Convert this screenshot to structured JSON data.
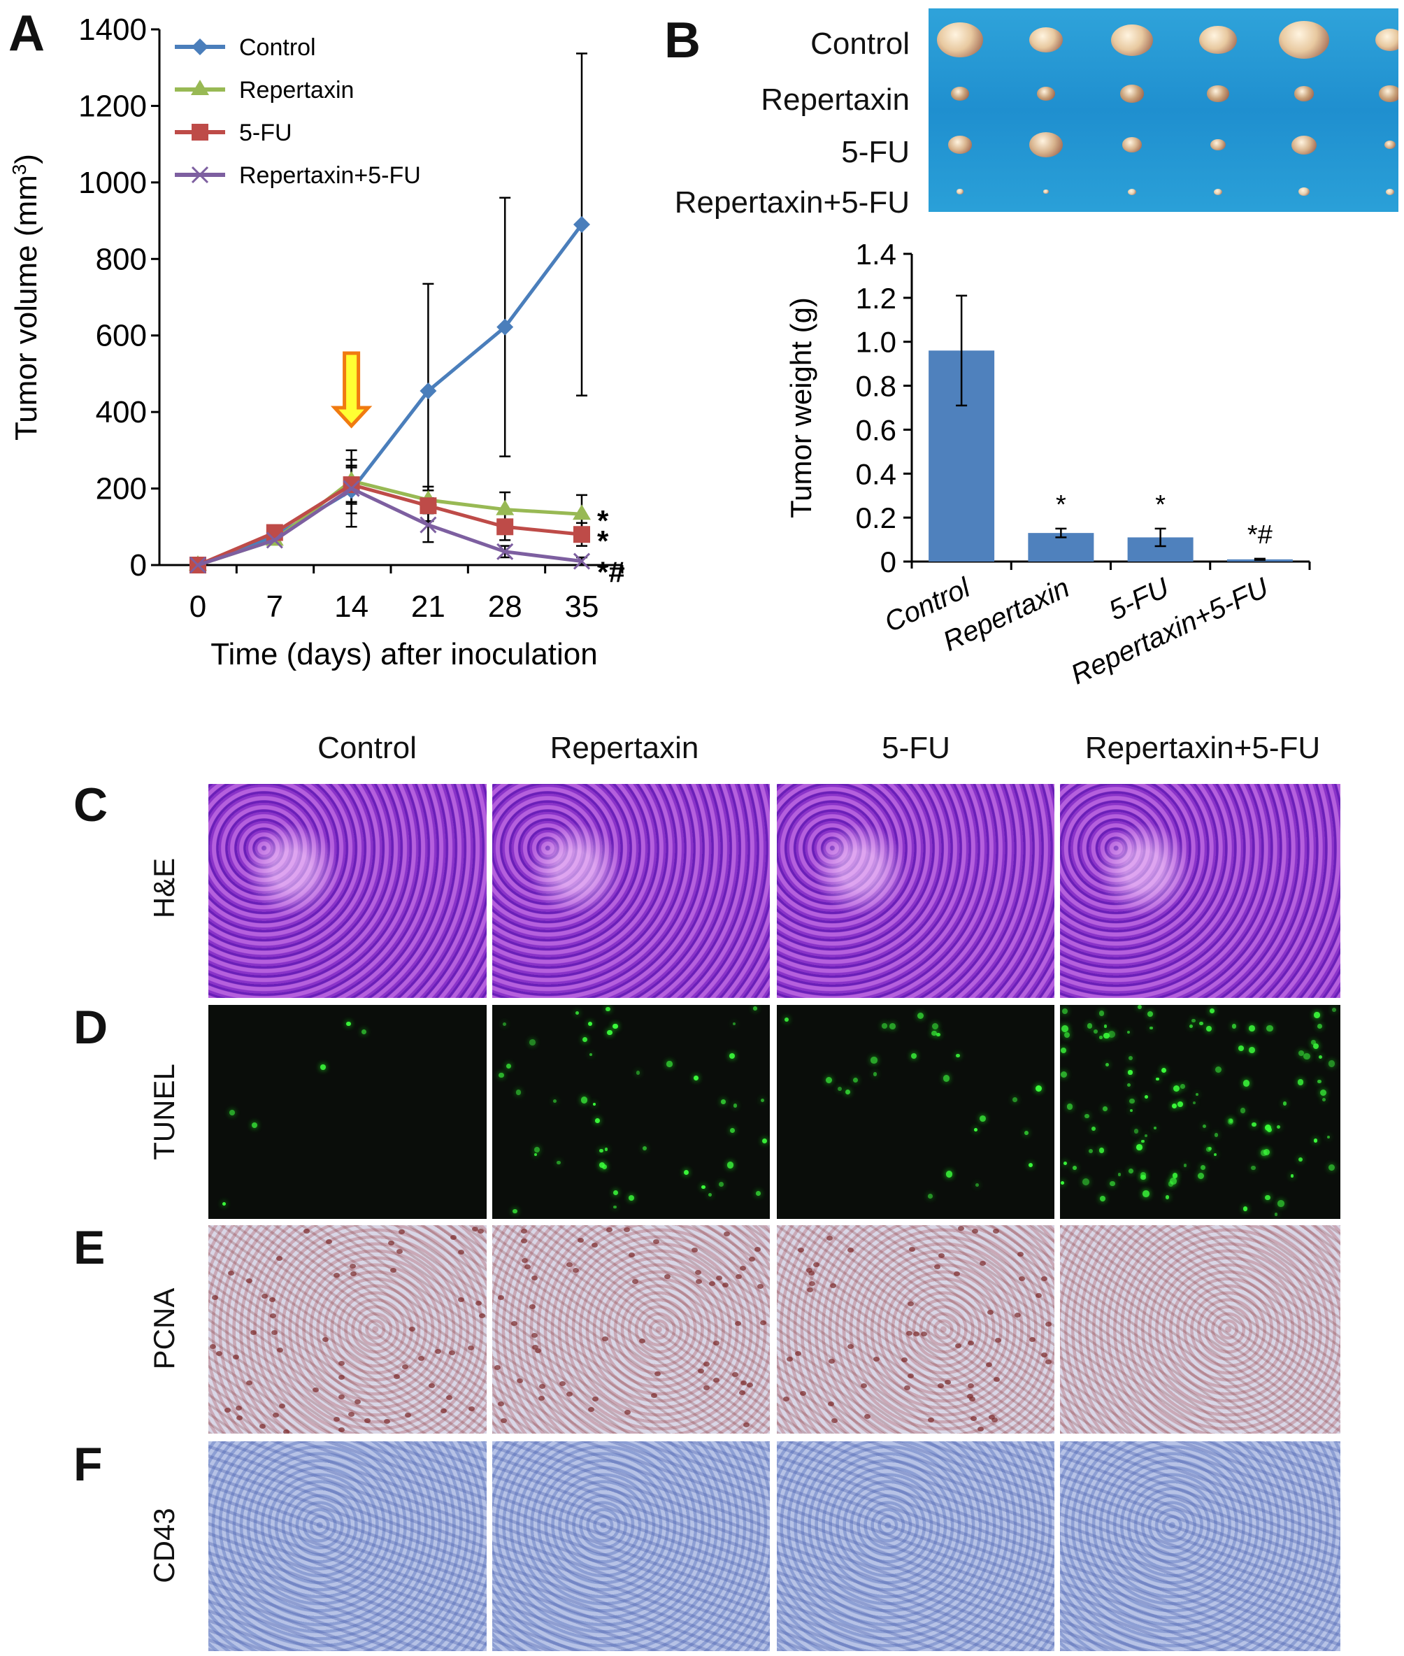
{
  "panels": {
    "A": "A",
    "B": "B",
    "C": "C",
    "D": "D",
    "E": "E",
    "F": "F"
  },
  "colors": {
    "Control": "#4a7ebb",
    "Repertaxin": "#98b954",
    "5-FU": "#be4b48",
    "Repertaxin+5-FU": "#7d5fa0",
    "bar": "#4f81bd",
    "arrow": "#f07a10",
    "arrow_fill": "#ffff33"
  },
  "photo_labels": [
    "Control",
    "Repertaxin",
    "5-FU",
    "Repertaxin+5-FU"
  ],
  "histology": {
    "columns": [
      "Control",
      "Repertaxin",
      "5-FU",
      "Repertaxin+5-FU"
    ],
    "rows": [
      "H&E",
      "TUNEL",
      "PCNA",
      "CD43"
    ]
  },
  "chart_data": [
    {
      "type": "line",
      "title": "",
      "xlabel": "Time (days) after inoculation",
      "ylabel": "Tumor volume (mm³)",
      "ylabel_main": "Tumor volume (mm",
      "ylabel_sup": "3",
      "ylabel_end": ")",
      "x": [
        0,
        7,
        14,
        21,
        28,
        35
      ],
      "xticks": [
        "0",
        "7",
        "14",
        "21",
        "28",
        "35"
      ],
      "ylim": [
        0,
        1400
      ],
      "yticks": [
        "0",
        "200",
        "400",
        "600",
        "800",
        "1000",
        "1200",
        "1400"
      ],
      "legend_position": "top-left",
      "annotation_arrow_day": 14,
      "series": [
        {
          "name": "Control",
          "marker": "diamond",
          "values": [
            0,
            75,
            195,
            455,
            622,
            890
          ],
          "errors": [
            0,
            10,
            60,
            280,
            338,
            447
          ],
          "significance": ""
        },
        {
          "name": "Repertaxin",
          "marker": "triangle",
          "values": [
            0,
            65,
            220,
            170,
            145,
            133
          ],
          "errors": [
            0,
            10,
            55,
            35,
            45,
            50
          ],
          "significance": "*"
        },
        {
          "name": "5-FU",
          "marker": "square",
          "values": [
            0,
            85,
            210,
            155,
            100,
            80
          ],
          "errors": [
            0,
            10,
            50,
            40,
            35,
            30
          ],
          "significance": "*"
        },
        {
          "name": "Repertaxin+5-FU",
          "marker": "x",
          "values": [
            0,
            65,
            200,
            105,
            35,
            10
          ],
          "errors": [
            0,
            10,
            100,
            45,
            15,
            10
          ],
          "significance": "*#"
        }
      ]
    },
    {
      "type": "bar",
      "title": "",
      "xlabel": "",
      "ylabel": "Tumor weight (g)",
      "categories": [
        "Control",
        "Repertaxin",
        "5-FU",
        "Repertaxin+5-FU"
      ],
      "values": [
        0.96,
        0.13,
        0.11,
        0.01
      ],
      "errors": [
        0.25,
        0.02,
        0.04,
        0.003
      ],
      "significance": [
        "",
        "*",
        "*",
        "*#"
      ],
      "ylim": [
        0,
        1.4
      ],
      "yticks": [
        "0",
        "0.2",
        "0.4",
        "0.6",
        "0.8",
        "1.0",
        "1.2",
        "1.4"
      ]
    }
  ]
}
